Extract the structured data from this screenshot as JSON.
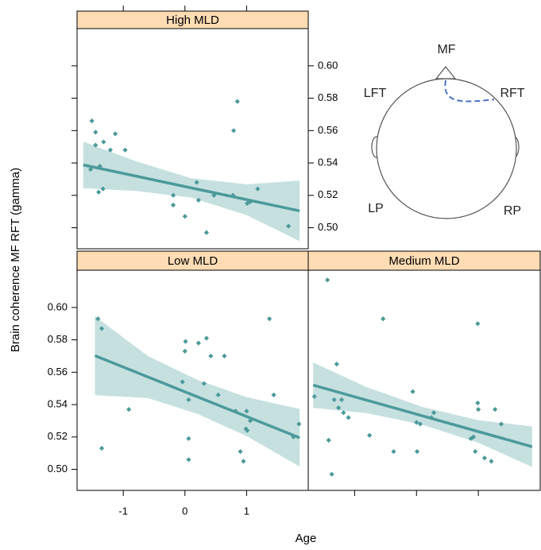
{
  "xlabel": "Age",
  "ylabel": "Brain coherence MF RFT (gamma)",
  "diagram": {
    "labels": [
      "MF",
      "LFT",
      "RFT",
      "LP",
      "RP"
    ]
  },
  "chart_data": [
    {
      "type": "scatter",
      "title": "High MLD",
      "color": "#4d9a9a",
      "band_color": "#c6e0e0",
      "xlim": [
        -1.75,
        2.0
      ],
      "ylim": [
        0.487,
        0.623
      ],
      "xticks": [
        -1,
        0,
        1
      ],
      "yticks": [
        {
          "value": 0.5,
          "label": "0.50"
        },
        0.52,
        0.54,
        0.56,
        0.58,
        {
          "value": 0.6,
          "label": "0.60"
        }
      ],
      "x": [
        -1.51,
        -1.45,
        -1.32,
        -1.21,
        -1.13,
        -1.45,
        -0.97,
        -1.53,
        -1.4,
        -1.33,
        -1.38,
        -0.19,
        -0.19,
        0.0,
        0.19,
        0.22,
        0.35,
        0.47,
        0.79,
        0.85,
        0.78,
        1.01,
        1.06,
        1.18,
        1.68
      ],
      "y": [
        0.566,
        0.559,
        0.553,
        0.548,
        0.558,
        0.551,
        0.548,
        0.536,
        0.522,
        0.524,
        0.538,
        0.52,
        0.514,
        0.507,
        0.528,
        0.517,
        0.497,
        0.52,
        0.56,
        0.578,
        0.52,
        0.515,
        0.516,
        0.524,
        0.501
      ],
      "fit": {
        "x": [
          -1.65,
          1.86
        ],
        "y": [
          0.5388,
          0.5104
        ]
      },
      "band": {
        "x": [
          -1.65,
          -0.8,
          0.1,
          1.0,
          1.86
        ],
        "upper": [
          0.5532,
          0.5411,
          0.5306,
          0.5268,
          0.5291
        ],
        "lower": [
          0.5244,
          0.5227,
          0.5186,
          0.5078,
          0.4917
        ]
      }
    },
    {
      "type": "scatter",
      "title": "Low MLD",
      "color": "#4d9a9a",
      "band_color": "#c6e0e0",
      "xlim": [
        -1.75,
        2.0
      ],
      "ylim": [
        0.487,
        0.623
      ],
      "xticks": [
        -1,
        0,
        1
      ],
      "yticks": [
        {
          "value": 0.5,
          "label": "0.50"
        },
        0.52,
        0.54,
        0.56,
        0.58,
        {
          "value": 0.6,
          "label": "0.60"
        }
      ],
      "x": [
        -1.41,
        -1.35,
        -1.35,
        -0.91,
        -0.04,
        0.01,
        0.0,
        0.06,
        0.06,
        0.06,
        0.22,
        0.31,
        0.35,
        0.42,
        0.54,
        0.64,
        0.82,
        0.9,
        0.95,
        0.99,
        1.0,
        1.06,
        1.01,
        1.37,
        1.44,
        1.85,
        1.76
      ],
      "y": [
        0.593,
        0.587,
        0.513,
        0.537,
        0.554,
        0.579,
        0.573,
        0.543,
        0.519,
        0.506,
        0.578,
        0.553,
        0.581,
        0.57,
        0.546,
        0.57,
        0.536,
        0.511,
        0.505,
        0.525,
        0.536,
        0.53,
        0.524,
        0.593,
        0.546,
        0.528,
        0.52
      ],
      "fit": {
        "x": [
          -1.46,
          1.86
        ],
        "y": [
          0.5702,
          0.5195
        ]
      },
      "band": {
        "x": [
          -1.46,
          -0.6,
          0.2,
          1.0,
          1.86
        ],
        "upper": [
          0.5946,
          0.57,
          0.5553,
          0.5446,
          0.5373
        ],
        "lower": [
          0.5458,
          0.544,
          0.5343,
          0.5206,
          0.5017
        ]
      }
    },
    {
      "type": "scatter",
      "title": "Medium MLD",
      "color": "#4d9a9a",
      "band_color": "#c6e0e0",
      "xlim": [
        -1.75,
        2.0
      ],
      "ylim": [
        0.487,
        0.623
      ],
      "xticks": [
        -1,
        0,
        1
      ],
      "yticks": [
        {
          "value": 0.5,
          "label": "0.50"
        },
        0.52,
        0.54,
        0.56,
        0.58,
        {
          "value": 0.6,
          "label": "0.60"
        }
      ],
      "x": [
        -1.65,
        -1.44,
        -1.42,
        -1.37,
        -1.33,
        -1.29,
        -1.26,
        -1.21,
        -1.18,
        -1.1,
        -0.76,
        -0.54,
        -0.37,
        -0.06,
        0.0,
        0.06,
        0.01,
        0.24,
        0.28,
        0.88,
        0.92,
        0.99,
        0.99,
        1.0,
        0.95,
        1.1,
        1.21,
        1.27,
        1.37
      ],
      "y": [
        0.545,
        0.617,
        0.518,
        0.497,
        0.543,
        0.565,
        0.538,
        0.543,
        0.535,
        0.532,
        0.521,
        0.593,
        0.511,
        0.548,
        0.529,
        0.528,
        0.511,
        0.532,
        0.535,
        0.519,
        0.52,
        0.59,
        0.541,
        0.537,
        0.511,
        0.507,
        0.505,
        0.537,
        0.528
      ],
      "fit": {
        "x": [
          -1.67,
          1.87
        ],
        "y": [
          0.552,
          0.514
        ]
      },
      "band": {
        "x": [
          -1.67,
          -0.8,
          0.1,
          1.0,
          1.87
        ],
        "upper": [
          0.566,
          0.5507,
          0.5385,
          0.5304,
          0.5265
        ],
        "lower": [
          0.538,
          0.5347,
          0.5275,
          0.5164,
          0.5015
        ]
      }
    }
  ]
}
